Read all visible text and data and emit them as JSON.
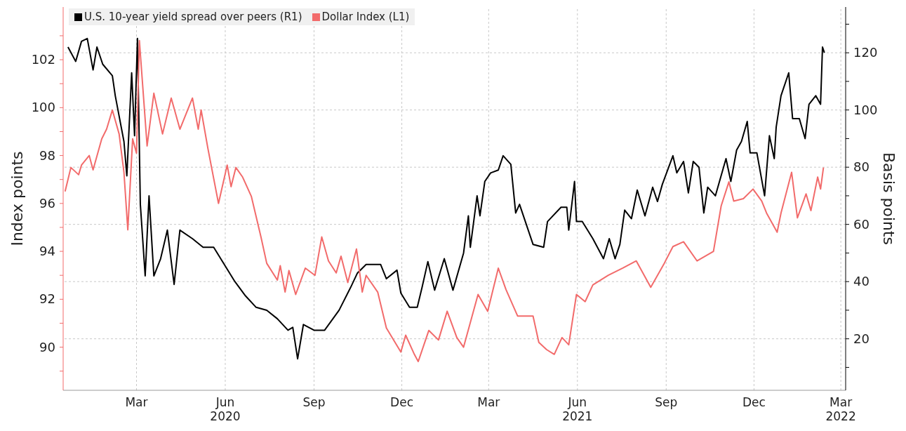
{
  "chart_data": {
    "type": "line",
    "ylabel": "Index points",
    "y2label": "Basis points",
    "legend": "top left",
    "grid": true,
    "line_style": "solid",
    "marker": "none",
    "xlim": [
      "2019-12-30",
      "2022-03-20"
    ],
    "xticks": [
      {
        "value": "2020-03-15",
        "label": "Mar"
      },
      {
        "value": "2020-06-15",
        "label": "Jun\n2020"
      },
      {
        "value": "2020-09-15",
        "label": "Sep"
      },
      {
        "value": "2020-12-15",
        "label": "Dec"
      },
      {
        "value": "2021-03-15",
        "label": "Mar"
      },
      {
        "value": "2021-06-15",
        "label": "Jun\n2021"
      },
      {
        "value": "2021-09-15",
        "label": "Sep"
      },
      {
        "value": "2021-12-15",
        "label": "Dec"
      },
      {
        "value": "2022-03-15",
        "label": "Mar\n2022"
      }
    ],
    "ylim": [
      88.2,
      104.2
    ],
    "yticks": [
      {
        "value": 89,
        "label": null
      },
      90,
      {
        "value": 91,
        "label": null
      },
      92,
      {
        "value": 93,
        "label": null
      },
      94,
      {
        "value": 95,
        "label": null
      },
      96,
      {
        "value": 97,
        "label": null
      },
      98,
      {
        "value": 99,
        "label": null
      },
      100,
      {
        "value": 101,
        "label": null
      },
      102,
      {
        "value": 103,
        "label": null
      }
    ],
    "y2lim": [
      2,
      136
    ],
    "y2ticks": [
      {
        "value": 10,
        "label": null
      },
      20,
      {
        "value": 30,
        "label": null
      },
      40,
      {
        "value": 50,
        "label": null
      },
      60,
      {
        "value": 70,
        "label": null
      },
      80,
      {
        "value": 90,
        "label": null
      },
      100,
      {
        "value": 110,
        "label": null
      },
      120,
      {
        "value": 130,
        "label": null
      }
    ],
    "series": [
      {
        "name": "U.S. 10-year yield spread over peers (R1)",
        "color": "#000000",
        "axis": "y2",
        "x": [
          "2020-01-04",
          "2020-01-12",
          "2020-01-18",
          "2020-01-24",
          "2020-01-30",
          "2020-02-03",
          "2020-02-09",
          "2020-02-19",
          "2020-02-22",
          "2020-03-02",
          "2020-03-05",
          "2020-03-10",
          "2020-03-13",
          "2020-03-16",
          "2020-03-19",
          "2020-03-24",
          "2020-03-28",
          "2020-04-02",
          "2020-04-09",
          "2020-04-16",
          "2020-04-23",
          "2020-04-29",
          "2020-05-12",
          "2020-05-23",
          "2020-06-03",
          "2020-06-14",
          "2020-06-25",
          "2020-07-06",
          "2020-07-17",
          "2020-07-28",
          "2020-08-08",
          "2020-08-19",
          "2020-08-24",
          "2020-08-29",
          "2020-09-04",
          "2020-09-15",
          "2020-09-26",
          "2020-10-11",
          "2020-10-23",
          "2020-10-30",
          "2020-11-08",
          "2020-11-23",
          "2020-11-29",
          "2020-12-10",
          "2020-12-14",
          "2020-12-23",
          "2020-12-31",
          "2021-01-05",
          "2021-01-11",
          "2021-01-18",
          "2021-01-28",
          "2021-02-06",
          "2021-02-17",
          "2021-02-22",
          "2021-02-24",
          "2021-03-03",
          "2021-03-06",
          "2021-03-11",
          "2021-03-17",
          "2021-03-25",
          "2021-03-30",
          "2021-04-07",
          "2021-04-12",
          "2021-04-16",
          "2021-04-30",
          "2021-05-11",
          "2021-05-15",
          "2021-05-29",
          "2021-06-04",
          "2021-06-06",
          "2021-06-12",
          "2021-06-14",
          "2021-06-20",
          "2021-07-01",
          "2021-07-12",
          "2021-07-18",
          "2021-07-24",
          "2021-07-29",
          "2021-08-03",
          "2021-08-10",
          "2021-08-16",
          "2021-08-24",
          "2021-09-01",
          "2021-09-06",
          "2021-09-11",
          "2021-09-22",
          "2021-09-26",
          "2021-10-03",
          "2021-10-08",
          "2021-10-13",
          "2021-10-19",
          "2021-10-24",
          "2021-10-28",
          "2021-11-05",
          "2021-11-16",
          "2021-11-21",
          "2021-11-27",
          "2021-12-02",
          "2021-12-08",
          "2021-12-11",
          "2021-12-18",
          "2021-12-26",
          "2021-12-31",
          "2022-01-05",
          "2022-01-07",
          "2022-01-12",
          "2022-01-20",
          "2022-01-24",
          "2022-01-31",
          "2022-02-06",
          "2022-02-10",
          "2022-02-17",
          "2022-02-22",
          "2022-02-24",
          "2022-02-26"
        ],
        "values": [
          122,
          117,
          124,
          125,
          114,
          122,
          116,
          112,
          105,
          89,
          77,
          113,
          91,
          125,
          67,
          42,
          70,
          42,
          48,
          58,
          39,
          58,
          55,
          52,
          52,
          46,
          40,
          35,
          31,
          30,
          27,
          23,
          24,
          13,
          25,
          23,
          23,
          30,
          38,
          43,
          46,
          46,
          41,
          44,
          36,
          31,
          31,
          38,
          47,
          37,
          48,
          37,
          50,
          63,
          52,
          70,
          63,
          75,
          78,
          79,
          84,
          81,
          64,
          67,
          53,
          52,
          61,
          66,
          66,
          58,
          75,
          61,
          61,
          55,
          48,
          55,
          48,
          53,
          65,
          62,
          72,
          63,
          73,
          68,
          74,
          84,
          78,
          82,
          71,
          82,
          80,
          64,
          73,
          70,
          83,
          75,
          86,
          89,
          96,
          85,
          85,
          70,
          91,
          83,
          94,
          105,
          113,
          97,
          97,
          90,
          102,
          105,
          102,
          122,
          120
        ]
      },
      {
        "name": "Dollar Index (L1)",
        "color": "#f26b6b",
        "axis": "y",
        "x": [
          "2020-01-01",
          "2020-01-07",
          "2020-01-15",
          "2020-01-18",
          "2020-01-26",
          "2020-01-30",
          "2020-02-08",
          "2020-02-13",
          "2020-02-19",
          "2020-02-26",
          "2020-03-02",
          "2020-03-06",
          "2020-03-11",
          "2020-03-15",
          "2020-03-18",
          "2020-03-26",
          "2020-04-02",
          "2020-04-11",
          "2020-04-20",
          "2020-04-29",
          "2020-05-12",
          "2020-05-18",
          "2020-05-21",
          "2020-05-28",
          "2020-06-08",
          "2020-06-17",
          "2020-06-21",
          "2020-06-26",
          "2020-07-03",
          "2020-07-12",
          "2020-07-22",
          "2020-07-28",
          "2020-08-08",
          "2020-08-11",
          "2020-08-16",
          "2020-08-20",
          "2020-08-27",
          "2020-09-06",
          "2020-09-16",
          "2020-09-23",
          "2020-09-30",
          "2020-10-08",
          "2020-10-13",
          "2020-10-20",
          "2020-10-29",
          "2020-11-04",
          "2020-11-08",
          "2020-11-20",
          "2020-11-29",
          "2020-12-14",
          "2020-12-19",
          "2020-12-28",
          "2021-01-01",
          "2021-01-12",
          "2021-01-22",
          "2021-01-31",
          "2021-02-10",
          "2021-02-17",
          "2021-03-04",
          "2021-03-14",
          "2021-03-25",
          "2021-04-02",
          "2021-04-14",
          "2021-04-30",
          "2021-05-06",
          "2021-05-14",
          "2021-05-22",
          "2021-05-30",
          "2021-06-06",
          "2021-06-14",
          "2021-06-23",
          "2021-07-01",
          "2021-07-17",
          "2021-08-01",
          "2021-08-15",
          "2021-08-30",
          "2021-09-13",
          "2021-09-22",
          "2021-10-03",
          "2021-10-17",
          "2021-11-03",
          "2021-11-11",
          "2021-11-19",
          "2021-11-24",
          "2021-12-04",
          "2021-12-14",
          "2021-12-23",
          "2021-12-28",
          "2022-01-08",
          "2022-01-12",
          "2022-01-23",
          "2022-01-29",
          "2022-02-07",
          "2022-02-12",
          "2022-02-19",
          "2022-02-22",
          "2022-02-25"
        ],
        "values": [
          96.5,
          97.5,
          97.2,
          97.6,
          98.0,
          97.4,
          98.7,
          99.1,
          99.9,
          98.9,
          97.3,
          94.9,
          98.7,
          98.1,
          102.8,
          98.4,
          100.6,
          98.9,
          100.4,
          99.1,
          100.4,
          99.1,
          99.9,
          98.3,
          96.0,
          97.6,
          96.7,
          97.5,
          97.1,
          96.3,
          94.6,
          93.5,
          92.8,
          93.4,
          92.3,
          93.2,
          92.2,
          93.3,
          93.0,
          94.6,
          93.6,
          93.1,
          93.8,
          92.7,
          94.1,
          92.3,
          93.0,
          92.3,
          90.8,
          89.8,
          90.5,
          89.7,
          89.4,
          90.7,
          90.3,
          91.5,
          90.4,
          90.0,
          92.2,
          91.5,
          93.3,
          92.4,
          91.3,
          91.3,
          90.2,
          89.9,
          89.7,
          90.4,
          90.1,
          92.2,
          91.9,
          92.6,
          93.0,
          93.3,
          93.6,
          92.5,
          93.5,
          94.2,
          94.4,
          93.6,
          94.0,
          95.9,
          96.9,
          96.1,
          96.2,
          96.6,
          96.1,
          95.6,
          94.8,
          95.6,
          97.3,
          95.4,
          96.4,
          95.7,
          97.1,
          96.6,
          97.5
        ]
      }
    ]
  }
}
